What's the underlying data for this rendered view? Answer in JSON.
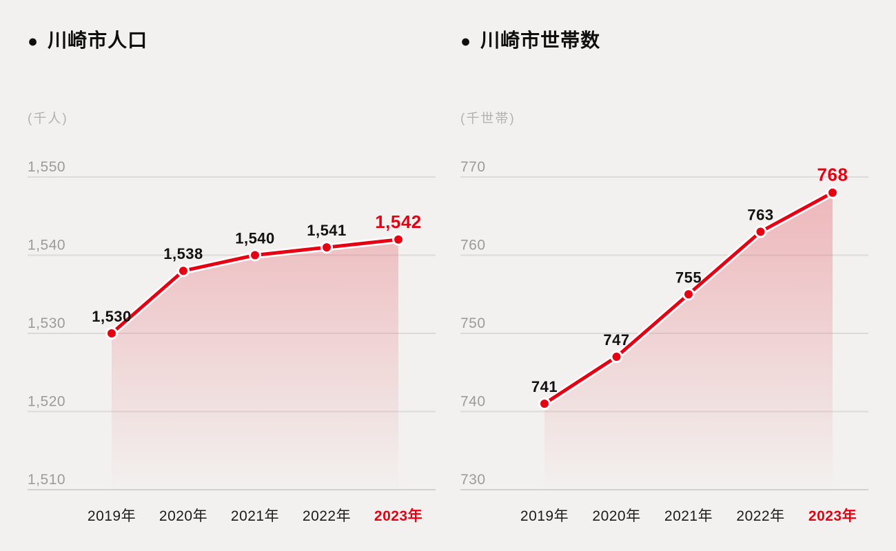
{
  "page": {
    "bullet": "●",
    "background": "#f2f1ef",
    "accent_red": "#e60012"
  },
  "chart_data": [
    {
      "type": "area",
      "title": "川崎市人口",
      "unit": "(千人)",
      "xlabel": "",
      "ylabel": "千人",
      "categories": [
        "2019年",
        "2020年",
        "2021年",
        "2022年",
        "2023年"
      ],
      "values": [
        1530,
        1538,
        1540,
        1541,
        1542
      ],
      "value_labels": [
        "1,530",
        "1,538",
        "1,540",
        "1,541",
        "1,542"
      ],
      "y_tick_values": [
        1550,
        1540,
        1530,
        1520,
        1510
      ],
      "y_tick_labels": [
        "1,550",
        "1,540",
        "1,530",
        "1,520",
        "1,510"
      ],
      "ylim": [
        1510,
        1550
      ],
      "grid": true,
      "legend": "none",
      "highlight_index": 4,
      "line_color": "#e60012",
      "area_color": "#e66470"
    },
    {
      "type": "area",
      "title": "川崎市世帯数",
      "unit": "(千世帯)",
      "xlabel": "",
      "ylabel": "千世帯",
      "categories": [
        "2019年",
        "2020年",
        "2021年",
        "2022年",
        "2023年"
      ],
      "values": [
        741,
        747,
        755,
        763,
        768
      ],
      "value_labels": [
        "741",
        "747",
        "755",
        "763",
        "768"
      ],
      "y_tick_values": [
        770,
        760,
        750,
        740,
        730
      ],
      "y_tick_labels": [
        "770",
        "760",
        "750",
        "740",
        "730"
      ],
      "ylim": [
        730,
        770
      ],
      "grid": true,
      "legend": "none",
      "highlight_index": 4,
      "line_color": "#e60012",
      "area_color": "#e66470"
    }
  ]
}
